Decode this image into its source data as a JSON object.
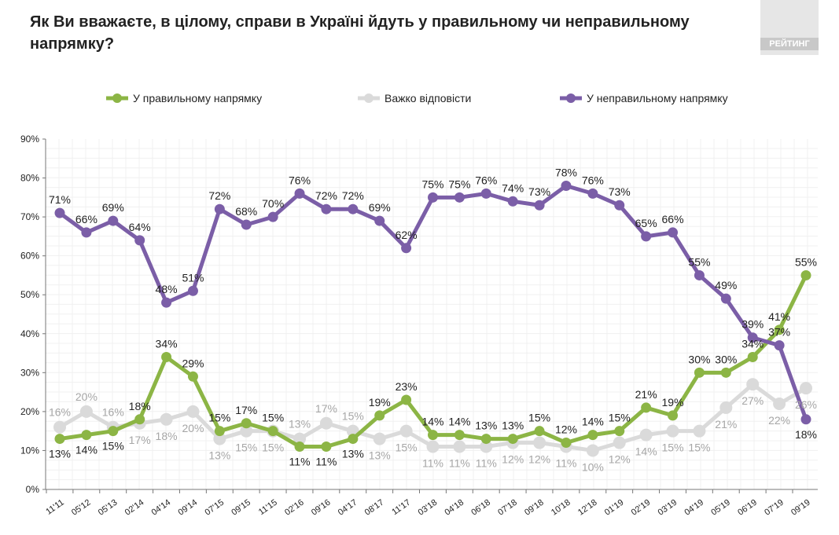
{
  "title": "Як Ви вважаєте, в цілому, справи в Україні йдуть у правильному чи неправильному напрямку?",
  "logo": "РЕЙТИНГ",
  "chart_data": {
    "type": "line",
    "title": "Як Ви вважаєте, в цілому, справи в Україні йдуть у правильному чи неправильному напрямку?",
    "categories": [
      "11'11",
      "05'12",
      "05'13",
      "02'14",
      "04'14",
      "09'14",
      "07'15",
      "09'15",
      "11'15",
      "02'16",
      "09'16",
      "04'17",
      "08'17",
      "11'17",
      "03'18",
      "04'18",
      "06'18",
      "07'18",
      "09'18",
      "10'18",
      "12'18",
      "01'19",
      "02'19",
      "03'19",
      "04'19",
      "05'19",
      "06'19",
      "07'19",
      "09'19"
    ],
    "ylim": [
      0,
      90
    ],
    "yticks": [
      0,
      10,
      20,
      30,
      40,
      50,
      60,
      70,
      80,
      90
    ],
    "ytick_labels": [
      "0%",
      "10%",
      "20%",
      "30%",
      "40%",
      "50%",
      "60%",
      "70%",
      "80%",
      "90%"
    ],
    "grid": true,
    "legend_position": "top",
    "series": [
      {
        "name": "У правильному напрямку",
        "color": "#8cb545",
        "label_color": "#222222",
        "values": [
          13,
          14,
          15,
          18,
          34,
          29,
          15,
          17,
          15,
          11,
          11,
          13,
          19,
          23,
          14,
          14,
          13,
          13,
          15,
          12,
          14,
          15,
          21,
          19,
          30,
          30,
          34,
          41,
          55
        ]
      },
      {
        "name": "Важко відповісти",
        "color": "#dadada",
        "label_color": "#a6a6a6",
        "values": [
          16,
          20,
          16,
          17,
          18,
          20,
          13,
          15,
          15,
          13,
          17,
          15,
          13,
          15,
          11,
          11,
          11,
          12,
          12,
          11,
          10,
          12,
          14,
          15,
          15,
          21,
          27,
          22,
          26
        ]
      },
      {
        "name": "У неправильному напрямку",
        "color": "#7b5ea7",
        "label_color": "#222222",
        "values": [
          71,
          66,
          69,
          64,
          48,
          51,
          72,
          68,
          70,
          76,
          72,
          72,
          69,
          62,
          75,
          75,
          76,
          74,
          73,
          78,
          76,
          73,
          65,
          66,
          55,
          49,
          39,
          37,
          18
        ]
      }
    ]
  }
}
